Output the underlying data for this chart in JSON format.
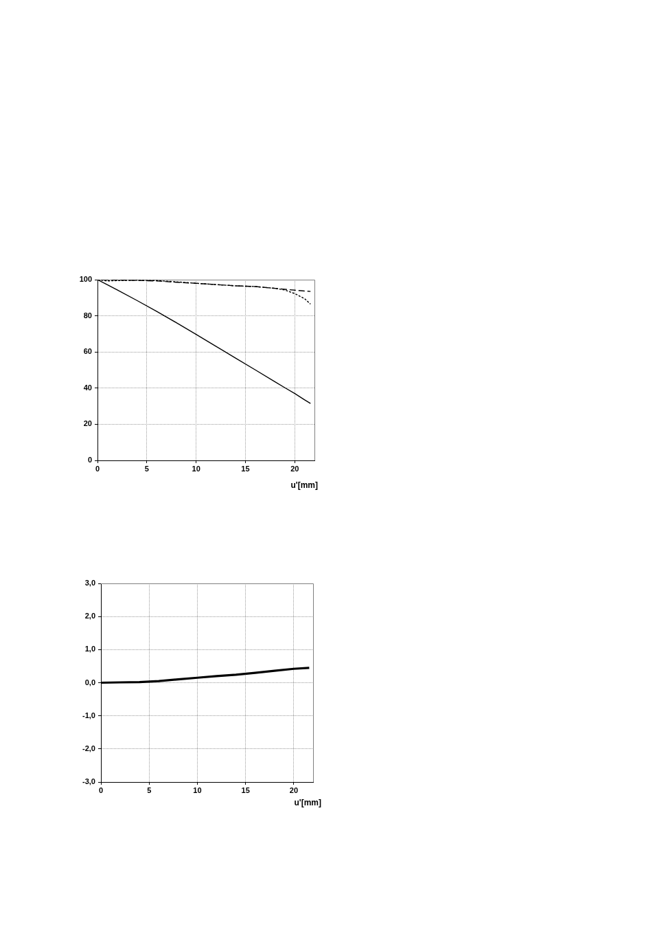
{
  "chart_data": [
    {
      "type": "line",
      "xlabel": "u'[mm]",
      "x": [
        0,
        1,
        2,
        4,
        6,
        8,
        10,
        12,
        14,
        16,
        18,
        19,
        20,
        21,
        21.6
      ],
      "series": [
        {
          "color": "#000000",
          "line_style": "solid",
          "values": [
            100,
            97.2,
            94.3,
            88.5,
            82.5,
            76.2,
            69.7,
            63.2,
            56.6,
            50.1,
            43.5,
            40.2,
            37,
            33.5,
            31.5
          ]
        },
        {
          "color": "#000000",
          "line_style": "dashed",
          "values": [
            100,
            100,
            99.8,
            99.6,
            99.3,
            98.6,
            98,
            97.3,
            96.6,
            96.2,
            95.2,
            94.7,
            94.2,
            93.7,
            93.5
          ]
        },
        {
          "color": "#000000",
          "line_style": "dotted",
          "values": [
            100,
            99.3,
            99.5,
            99.7,
            99.5,
            98.8,
            98,
            97.3,
            96.6,
            96.2,
            95.2,
            94.3,
            92.3,
            89.5,
            86.5
          ]
        }
      ],
      "xlim": [
        0,
        22
      ],
      "xticks": [
        0,
        5,
        10,
        15,
        20
      ],
      "ylim": [
        0,
        100
      ],
      "yticks": [
        0,
        20,
        40,
        60,
        80,
        100
      ],
      "grid": true,
      "legend": false,
      "marker": "none"
    },
    {
      "type": "line",
      "xlabel": "u'[mm]",
      "x": [
        0,
        2,
        4,
        6,
        8,
        10,
        12,
        14,
        16,
        18,
        20,
        21.6
      ],
      "series": [
        {
          "color": "#000000",
          "line_style": "solid",
          "values": [
            0,
            0.01,
            0.02,
            0.05,
            0.1,
            0.15,
            0.2,
            0.24,
            0.3,
            0.36,
            0.42,
            0.45
          ]
        }
      ],
      "xlim": [
        0,
        22
      ],
      "xticks": [
        0,
        5,
        10,
        15,
        20
      ],
      "ylim": [
        -3,
        3
      ],
      "yticks": [
        {
          "value": -3,
          "label": "-3,0"
        },
        {
          "value": -2,
          "label": "-2,0"
        },
        {
          "value": -1,
          "label": "-1,0"
        },
        {
          "value": 0,
          "label": "0,0"
        },
        {
          "value": 1,
          "label": "1,0"
        },
        {
          "value": 2,
          "label": "2,0"
        },
        {
          "value": 3,
          "label": "3,0"
        }
      ],
      "grid": true,
      "legend": false,
      "marker": "none"
    }
  ]
}
